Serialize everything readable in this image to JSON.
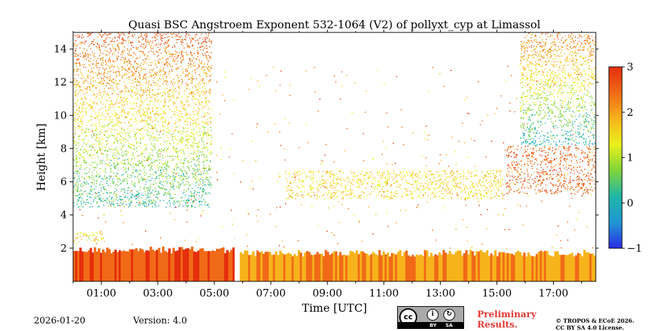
{
  "chart_data": {
    "type": "heatmap",
    "title": "Quasi BSC Angstroem Exponent 532-1064 (V2) of pollyxt_cyp at Limassol",
    "xlabel": "Time [UTC]",
    "ylabel": "Height [km]",
    "xlim_hours": [
      0,
      18.5
    ],
    "ylim_km": [
      0,
      15
    ],
    "x_ticks": [
      {
        "hour": 1,
        "label": "01:00"
      },
      {
        "hour": 3,
        "label": "03:00"
      },
      {
        "hour": 5,
        "label": "05:00"
      },
      {
        "hour": 7,
        "label": "07:00"
      },
      {
        "hour": 9,
        "label": "09:00"
      },
      {
        "hour": 11,
        "label": "11:00"
      },
      {
        "hour": 13,
        "label": "13:00"
      },
      {
        "hour": 15,
        "label": "15:00"
      },
      {
        "hour": 17,
        "label": "17:00"
      }
    ],
    "y_ticks": [
      {
        "km": 2,
        "label": "2"
      },
      {
        "km": 4,
        "label": "4"
      },
      {
        "km": 6,
        "label": "6"
      },
      {
        "km": 8,
        "label": "8"
      },
      {
        "km": 10,
        "label": "10"
      },
      {
        "km": 12,
        "label": "12"
      },
      {
        "km": 14,
        "label": "14"
      }
    ],
    "colorbar": {
      "range": [
        -1,
        3
      ],
      "ticks": [
        {
          "v": 3,
          "label": "3"
        },
        {
          "v": 2,
          "label": "2"
        },
        {
          "v": 1,
          "label": "1"
        },
        {
          "v": 0,
          "label": "0"
        },
        {
          "v": -1,
          "label": "−1"
        }
      ],
      "colormap": [
        "#2c2ce8",
        "#2096d4",
        "#1fb7a7",
        "#7fd43a",
        "#e9f11c",
        "#f7b31b",
        "#f06a17",
        "#e52f0c"
      ]
    },
    "regions": [
      {
        "name": "boundary layer (night)",
        "t": [
          0,
          5.7
        ],
        "h": [
          0,
          2.1
        ],
        "value": 2.6
      },
      {
        "name": "boundary layer (day)",
        "t": [
          5.9,
          18.5
        ],
        "h": [
          0,
          1.9
        ],
        "value": 2.1
      },
      {
        "name": "elevated layer early",
        "t": [
          0,
          1.1
        ],
        "h": [
          2.4,
          3.1
        ],
        "value": 1.4
      },
      {
        "name": "night aerosol column",
        "t": [
          0,
          4.9
        ],
        "h": [
          4.5,
          15
        ],
        "value": 1.2
      },
      {
        "name": "evening dust layer",
        "t": [
          15.3,
          18.5
        ],
        "h": [
          5.3,
          8.2
        ],
        "value": 2.5
      },
      {
        "name": "evening upper column",
        "t": [
          15.8,
          18.5
        ],
        "h": [
          8.2,
          15
        ],
        "value": 1.0
      },
      {
        "name": "mid-day sparse layer",
        "t": [
          7.5,
          15.2
        ],
        "h": [
          5.0,
          6.7
        ],
        "value": 1.5
      }
    ]
  },
  "footer": {
    "date": "2026-01-20",
    "version": "Version: 4.0",
    "preliminary_line1": "Preliminary",
    "preliminary_line2": "Results.",
    "license_line1": "© TROPOS & ECoE 2026.",
    "license_line2": "CC BY SA 4.0 License.",
    "cc_logo": "cc",
    "cc_by": "BY",
    "cc_sa": "SA"
  }
}
